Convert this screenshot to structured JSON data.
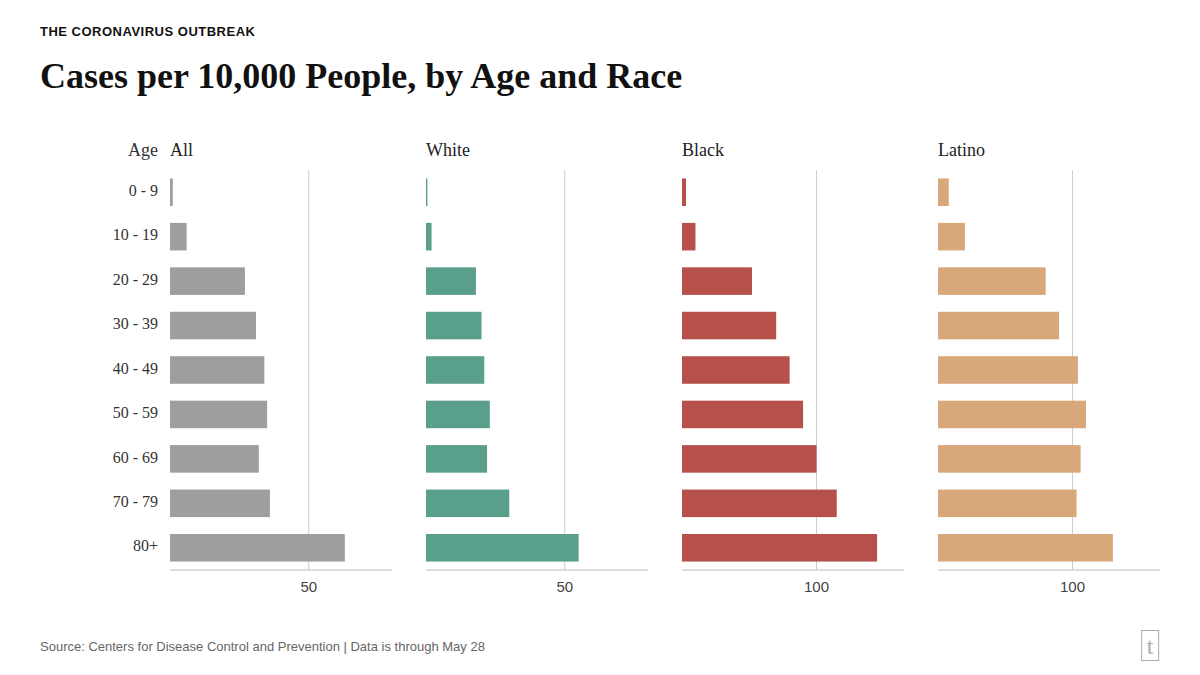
{
  "chart_data": {
    "type": "bar",
    "orientation": "horizontal",
    "subtitle": "THE CORONAVIRUS OUTBREAK",
    "title": "Cases per 10,000 People, by Age and Race",
    "source": "Source: Centers for Disease Control and Prevention | Data is through May 28",
    "annotations": [
      "t"
    ],
    "ylabel": "Age",
    "categories": [
      "0 - 9",
      "10 - 19",
      "20 - 29",
      "30 - 39",
      "40 - 49",
      "50 - 59",
      "60 - 69",
      "70 - 79",
      "80+"
    ],
    "grid": true,
    "series": [
      {
        "name": "All",
        "color": "#9e9e9e",
        "values": [
          1.0,
          6.0,
          27.0,
          31.0,
          34.0,
          35.0,
          32.0,
          36.0,
          63.0
        ],
        "xlim": [
          0,
          80
        ],
        "xticks": [
          50
        ]
      },
      {
        "name": "White",
        "color": "#5a9e8c",
        "values": [
          0.5,
          2.0,
          18.0,
          20.0,
          21.0,
          23.0,
          22.0,
          30.0,
          55.0
        ],
        "xlim": [
          0,
          80
        ],
        "xticks": [
          50
        ]
      },
      {
        "name": "Black",
        "color": "#b5514a",
        "values": [
          3.0,
          10.0,
          52.0,
          70.0,
          80.0,
          90.0,
          100.0,
          115.0,
          145.0
        ],
        "xlim": [
          0,
          165
        ],
        "xticks": [
          100
        ]
      },
      {
        "name": "Latino",
        "color": "#d9a87a",
        "values": [
          8.0,
          20.0,
          80.0,
          90.0,
          104.0,
          110.0,
          106.0,
          103.0,
          130.0
        ],
        "xlim": [
          0,
          165
        ],
        "xticks": [
          100
        ]
      }
    ]
  }
}
